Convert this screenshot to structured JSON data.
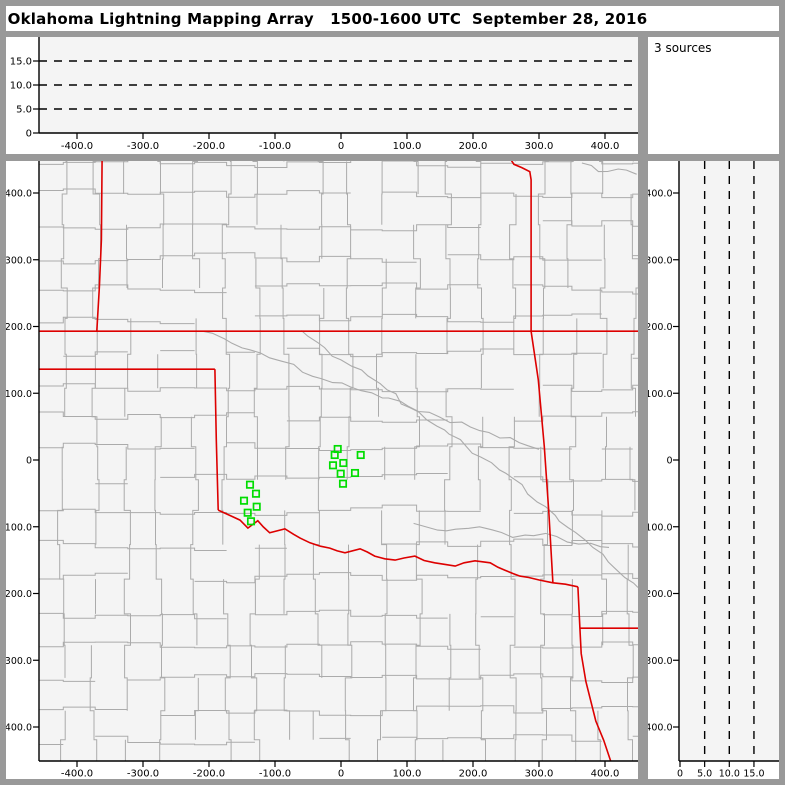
{
  "title": "Oklahoma Lightning Mapping Array   1500-1600 UTC  September 28, 2016",
  "sources_label": "3 sources",
  "colors": {
    "frame": "#999999",
    "panel": "#ffffff",
    "plot_bg": "#f4f4f4",
    "county_line": "#ababab",
    "river": "#ababab",
    "state_border": "#dd0000",
    "marker": "#00dd00",
    "axis": "#000000",
    "dashed": "#000000"
  },
  "chart_data": {
    "type": "scatter",
    "title": "Oklahoma Lightning Mapping Array",
    "time_range": "1500-1600 UTC",
    "date": "September 28, 2016",
    "source_count_label": "3 sources",
    "panels": {
      "top_altitude_ew": {
        "desc": "Altitude (km) vs east-west distance (km); dashed reference lines, no sources plotted",
        "x_range": [
          -460,
          460
        ],
        "y_range": [
          0,
          20
        ],
        "x_ticks": {
          "values": [
            -400,
            -300,
            -200,
            -100,
            0,
            100,
            200,
            300,
            400
          ],
          "labels": [
            "-400.0",
            "-300.0",
            "-200.0",
            "-100.0",
            "0",
            "100.0",
            "200.0",
            "300.0",
            "400.0"
          ]
        },
        "y_ticks": {
          "values": [
            0,
            5,
            10,
            15
          ],
          "labels": [
            "0",
            "5.0",
            "10.0",
            "15.0"
          ]
        },
        "dashed_y": [
          5,
          10,
          15
        ],
        "points": []
      },
      "sources_panel": {
        "label": "3 sources",
        "count": 3
      },
      "plan_view": {
        "desc": "Plan view map (km east-west vs km north-south); green squares are lightning source clusters; red = state borders, gray = county lines",
        "x_range": [
          -460,
          460
        ],
        "y_range": [
          -460,
          460
        ],
        "x_ticks": {
          "values": [
            -400,
            -300,
            -200,
            -100,
            0,
            100,
            200,
            300,
            400
          ],
          "labels": [
            "-400.0",
            "-300.0",
            "-200.0",
            "-100.0",
            "0",
            "100.0",
            "200.0",
            "300.0",
            "400.0"
          ]
        },
        "y_ticks": {
          "values": [
            400,
            300,
            200,
            100,
            0,
            -100,
            -200,
            -300,
            -400
          ],
          "labels": [
            "400.0",
            "300.0",
            "200.0",
            "100.0",
            "0",
            "-100.0",
            "-200.0",
            "-300.0",
            "-400.0"
          ]
        },
        "points": [
          [
            -5.0,
            16.5
          ],
          [
            -9.5,
            7.5
          ],
          [
            3.5,
            -4.5
          ],
          [
            29.8,
            7.5
          ],
          [
            -12.1,
            -7.9
          ],
          [
            -0.5,
            -20.5
          ],
          [
            21.2,
            -19.5
          ],
          [
            3.0,
            -35.5
          ],
          [
            -137.9,
            -37.0
          ],
          [
            -128.8,
            -50.5
          ],
          [
            -147.0,
            -61.0
          ],
          [
            -127.7,
            -70.0
          ],
          [
            -141.4,
            -78.9
          ],
          [
            -136.4,
            -91.8
          ]
        ],
        "state_borders": [
          [
            [
              -362,
              452
            ],
            [
              -363,
              330
            ],
            [
              -366,
              260
            ],
            [
              -370,
              193
            ]
          ],
          [
            [
              -458,
              193
            ],
            [
              450,
              193
            ]
          ],
          [
            [
              -458,
              136
            ],
            [
              -191,
              136
            ]
          ],
          [
            [
              -191,
              136
            ],
            [
              -189,
              30
            ],
            [
              -186,
              -75
            ]
          ],
          [
            [
              -186,
              -75
            ],
            [
              -166,
              -84
            ],
            [
              -153,
              -90
            ],
            [
              -141,
              -102
            ],
            [
              -126,
              -91
            ],
            [
              -108,
              -109
            ],
            [
              -85,
              -103
            ],
            [
              -62,
              -117
            ],
            [
              -47,
              -124
            ],
            [
              -17,
              -132
            ],
            [
              6,
              -139
            ],
            [
              29,
              -133
            ],
            [
              51,
              -144
            ],
            [
              82,
              -150
            ],
            [
              112,
              -144
            ],
            [
              142,
              -154
            ],
            [
              173,
              -159
            ],
            [
              203,
              -151
            ],
            [
              226,
              -154
            ],
            [
              248,
              -165
            ],
            [
              271,
              -174
            ],
            [
              301,
              -180
            ],
            [
              321,
              -184
            ],
            [
              340,
              -186
            ],
            [
              359,
              -190
            ]
          ],
          [
            [
              256,
              452
            ],
            [
              262,
              443
            ],
            [
              274,
              438
            ],
            [
              286,
              432
            ],
            [
              288,
              420
            ],
            [
              288,
              193
            ]
          ],
          [
            [
              288,
              193
            ],
            [
              299,
              120
            ],
            [
              308,
              20
            ],
            [
              315,
              -80
            ],
            [
              321,
              -184
            ]
          ],
          [
            [
              359,
              -190
            ],
            [
              362,
              -252
            ],
            [
              364,
              -290
            ],
            [
              371,
              -332
            ],
            [
              386,
              -391
            ],
            [
              398,
              -420
            ],
            [
              409,
              -452
            ]
          ],
          [
            [
              362,
              -252
            ],
            [
              452,
              -252
            ]
          ]
        ],
        "rivers": [
          [
            [
              -60,
              194
            ],
            [
              0,
              150
            ],
            [
              70,
              105
            ],
            [
              130,
              60
            ],
            [
              190,
              20
            ],
            [
              250,
              -20
            ],
            [
              310,
              -70
            ],
            [
              370,
              -120
            ],
            [
              430,
              -176
            ],
            [
              450,
              -191
            ]
          ],
          [
            [
              -210,
              193
            ],
            [
              -150,
              168
            ],
            [
              -90,
              148
            ],
            [
              -30,
              122
            ],
            [
              30,
              104
            ],
            [
              90,
              88
            ],
            [
              150,
              64
            ],
            [
              210,
              44
            ],
            [
              270,
              26
            ],
            [
              300,
              16
            ]
          ],
          [
            [
              110,
              -95
            ],
            [
              160,
              -106
            ],
            [
              210,
              -100
            ],
            [
              260,
              -116
            ],
            [
              310,
              -110
            ],
            [
              360,
              -126
            ],
            [
              406,
              -131
            ]
          ],
          [
            [
              365,
              445
            ],
            [
              390,
              432
            ],
            [
              420,
              436
            ],
            [
              448,
              428
            ]
          ]
        ],
        "county_grid": {
          "spacing": 46,
          "jitter": 7,
          "seed": 11,
          "skip": 0.12
        }
      },
      "right_altitude_ns": {
        "desc": "Altitude (km) vs north-south distance (km); dashed reference lines, no sources plotted",
        "x_range": [
          0,
          20
        ],
        "y_range": [
          -460,
          460
        ],
        "x_ticks": {
          "values": [
            0,
            5,
            10,
            15
          ],
          "labels": [
            "0",
            "5.0",
            "10.0",
            "15.0"
          ]
        },
        "y_ticks": {
          "values": [
            400,
            300,
            200,
            100,
            0,
            -100,
            -200,
            -300,
            -400
          ],
          "labels": [
            "400.0",
            "300.0",
            "200.0",
            "100.0",
            "0",
            "-100.0",
            "-200.0",
            "-300.0",
            "-400.0"
          ]
        },
        "dashed_x": [
          5,
          10,
          15
        ],
        "points": []
      }
    }
  }
}
